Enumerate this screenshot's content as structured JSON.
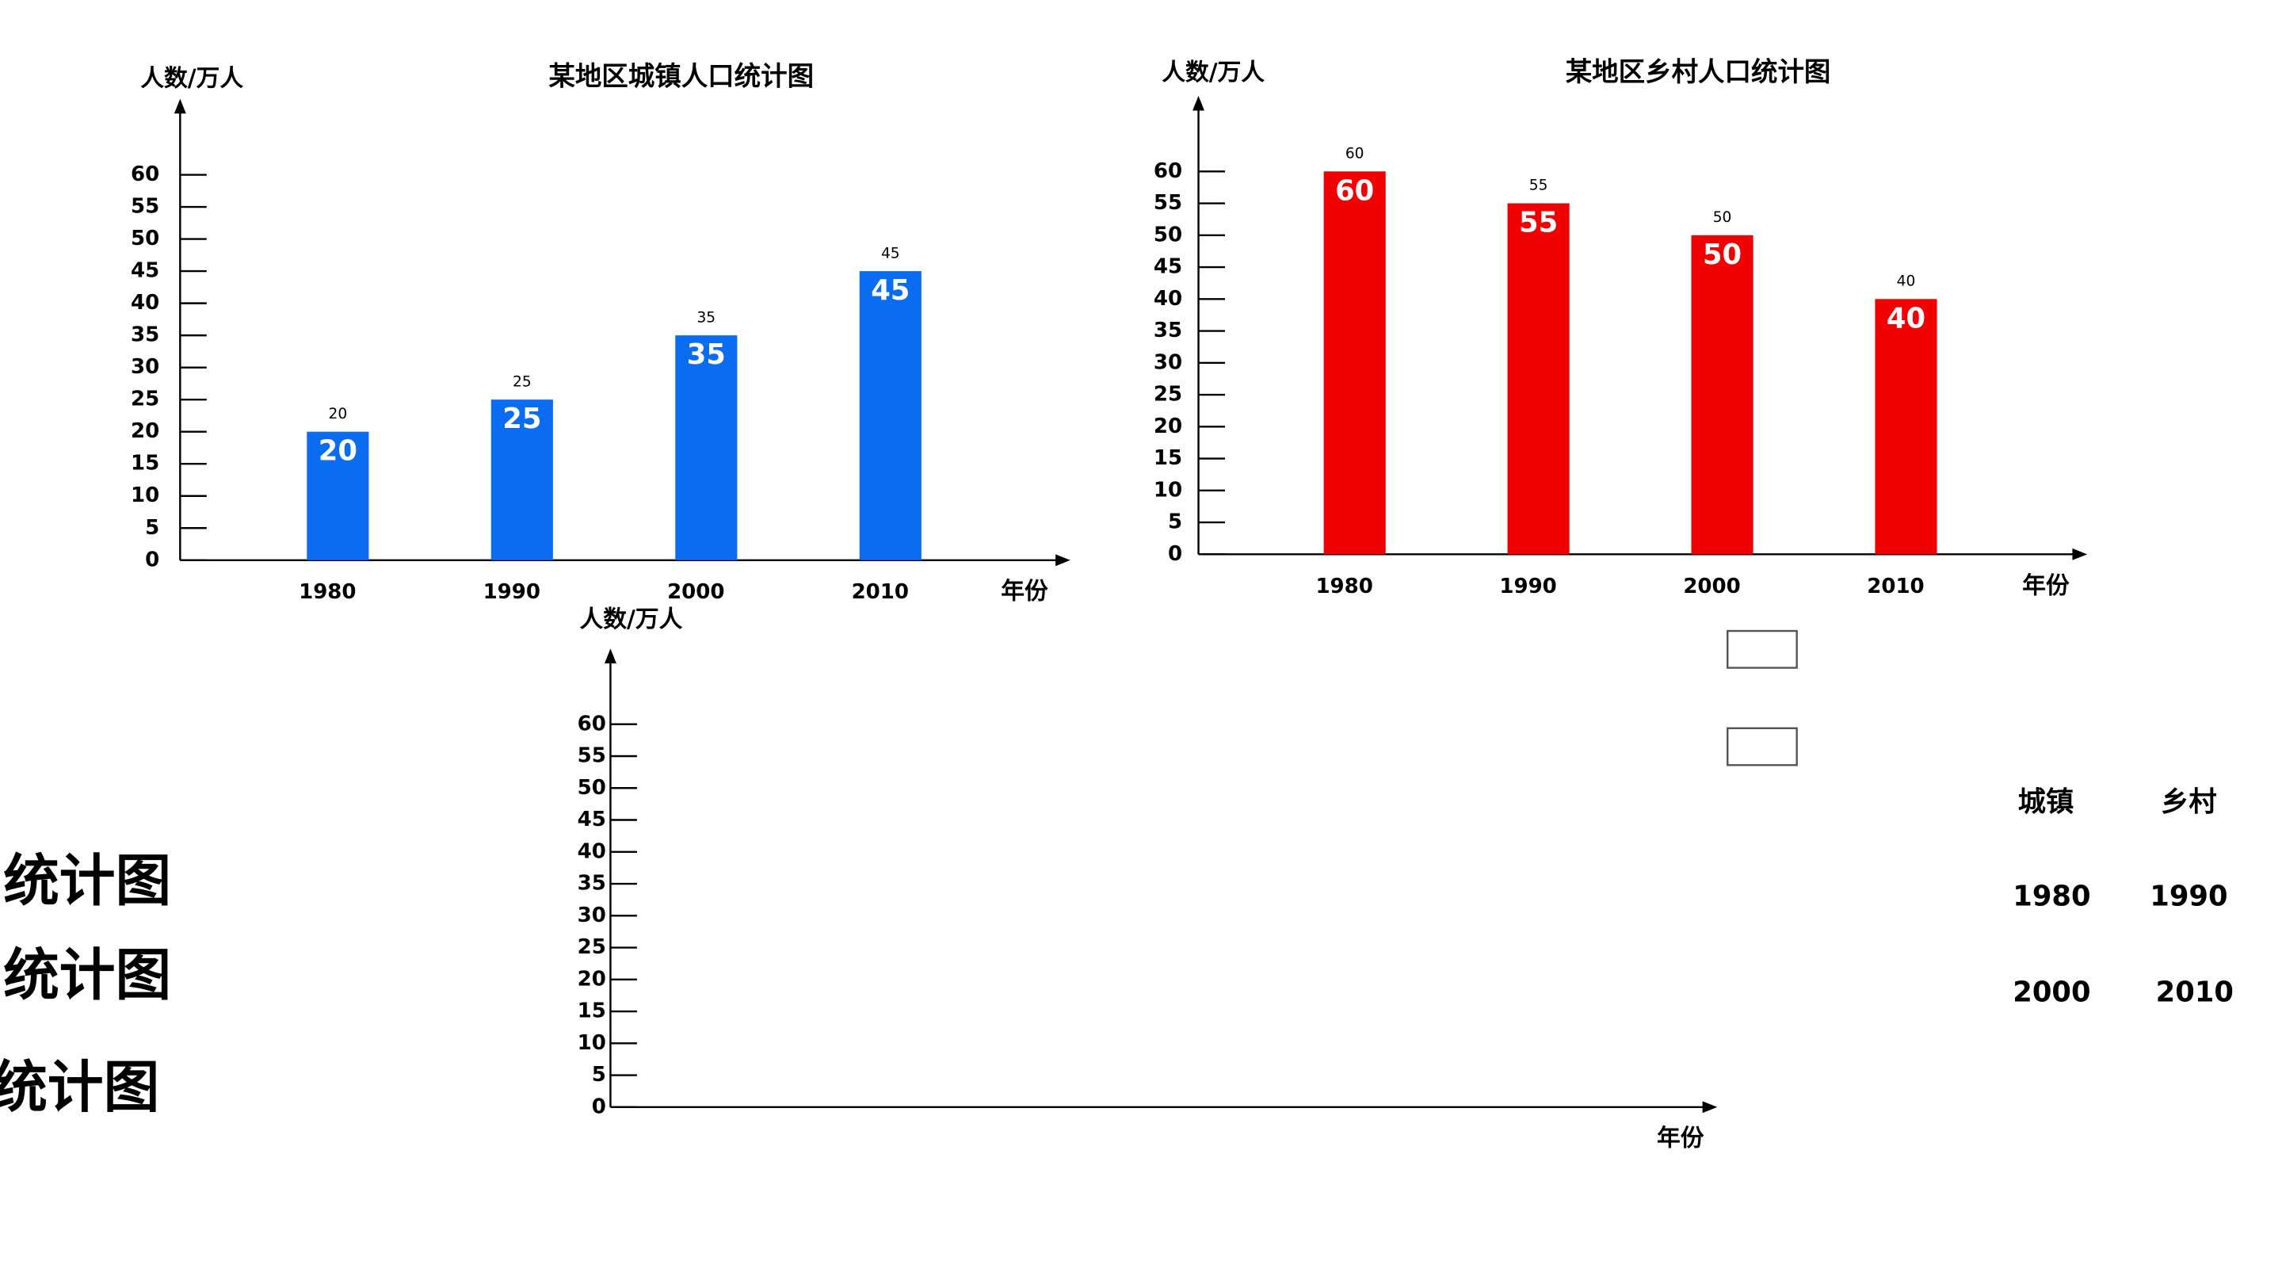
{
  "chart_data": [
    {
      "type": "bar",
      "title": "某地区城镇人口统计图",
      "y_label": "人数/万人",
      "x_label": "年份",
      "categories": [
        "1980",
        "1990",
        "2000",
        "2010"
      ],
      "values": [
        20,
        25,
        35,
        45
      ],
      "color": "#0a6cf0",
      "ylim": [
        0,
        70
      ],
      "yticks": [
        0,
        5,
        10,
        15,
        20,
        25,
        30,
        35,
        40,
        45,
        50,
        55,
        60
      ]
    },
    {
      "type": "bar",
      "title": "某地区乡村人口统计图",
      "y_label": "人数/万人",
      "x_label": "年份",
      "categories": [
        "1980",
        "1990",
        "2000",
        "2010"
      ],
      "values": [
        60,
        55,
        50,
        40
      ],
      "color": "#f00000",
      "ylim": [
        0,
        70
      ],
      "yticks": [
        0,
        5,
        10,
        15,
        20,
        25,
        30,
        35,
        40,
        45,
        50,
        55,
        60
      ]
    },
    {
      "type": "bar",
      "y_label": "人数/万人",
      "x_label": "年份",
      "categories": [],
      "values": [],
      "color": "#0a6cf0",
      "ylim": [
        0,
        70
      ],
      "yticks": [
        0,
        5,
        10,
        15,
        20,
        25,
        30,
        35,
        40,
        45,
        50,
        55,
        60
      ]
    }
  ],
  "side_labels": [
    "统计图",
    "统计图",
    "统计图"
  ],
  "legend_table": {
    "rows": [
      [
        "城镇",
        "乡村"
      ],
      [
        "1980",
        "1990"
      ],
      [
        "2000",
        "2010"
      ]
    ]
  }
}
